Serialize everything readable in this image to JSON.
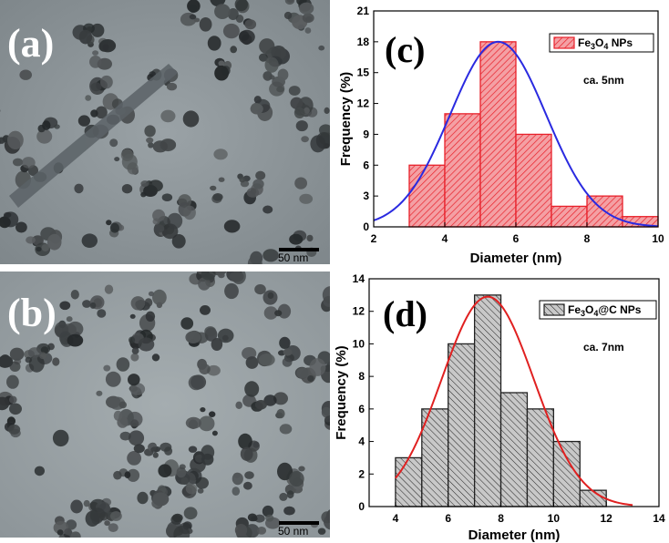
{
  "panels": {
    "a": {
      "letter": "(a)",
      "scale_label": "50 nm"
    },
    "b": {
      "letter": "(b)",
      "scale_label": "50 nm"
    },
    "c": {
      "letter": "(c)",
      "note": "ca. 5nm"
    },
    "d": {
      "letter": "(d)",
      "note": "ca. 7nm"
    }
  },
  "colors": {
    "c_bar_stroke": "#e8202a",
    "c_bar_fill": "#f4a0a4",
    "c_curve": "#2a2ae0",
    "d_bar_stroke": "#222222",
    "d_bar_fill": "#c8c8c8",
    "d_curve": "#e02020"
  },
  "chart_data": [
    {
      "id": "c",
      "type": "bar",
      "title": "",
      "xlabel": "Diameter (nm)",
      "ylabel": "Frequency (%)",
      "xlim": [
        2,
        10
      ],
      "ylim": [
        0,
        21
      ],
      "xticks": [
        2,
        4,
        6,
        8,
        10
      ],
      "yticks": [
        0,
        3,
        6,
        9,
        12,
        15,
        18,
        21
      ],
      "bin_width": 1,
      "bins": [
        {
          "x0": 3,
          "x1": 4,
          "value": 6
        },
        {
          "x0": 4,
          "x1": 5,
          "value": 11
        },
        {
          "x0": 5,
          "x1": 6,
          "value": 18
        },
        {
          "x0": 6,
          "x1": 7,
          "value": 9
        },
        {
          "x0": 7,
          "x1": 8,
          "value": 2
        },
        {
          "x0": 8,
          "x1": 9,
          "value": 3
        },
        {
          "x0": 9,
          "x1": 10,
          "value": 1
        }
      ],
      "fit": {
        "type": "gaussian",
        "mean": 5.5,
        "sigma": 1.35,
        "peak": 18,
        "x_range": [
          2,
          10
        ]
      },
      "legend": {
        "label_main": "Fe",
        "sub1": "3",
        "mid": "O",
        "sub2": "4",
        "tail": " NPs",
        "placement": "top-right"
      },
      "grid": false
    },
    {
      "id": "d",
      "type": "bar",
      "title": "",
      "xlabel": "Diameter (nm)",
      "ylabel": "Frequency (%)",
      "xlim": [
        3,
        14
      ],
      "ylim": [
        0,
        14
      ],
      "xticks": [
        4,
        6,
        8,
        10,
        12,
        14
      ],
      "yticks": [
        0,
        2,
        4,
        6,
        8,
        10,
        12,
        14
      ],
      "bin_width": 1,
      "bins": [
        {
          "x0": 4,
          "x1": 5,
          "value": 3
        },
        {
          "x0": 5,
          "x1": 6,
          "value": 6
        },
        {
          "x0": 6,
          "x1": 7,
          "value": 10
        },
        {
          "x0": 7,
          "x1": 8,
          "value": 13
        },
        {
          "x0": 8,
          "x1": 9,
          "value": 7
        },
        {
          "x0": 9,
          "x1": 10,
          "value": 6
        },
        {
          "x0": 10,
          "x1": 11,
          "value": 4
        },
        {
          "x0": 11,
          "x1": 12,
          "value": 1
        }
      ],
      "fit": {
        "type": "gaussian",
        "mean": 7.5,
        "sigma": 1.75,
        "peak": 12.9,
        "x_range": [
          4,
          13
        ]
      },
      "legend": {
        "label_main": "Fe",
        "sub1": "3",
        "mid": "O",
        "sub2": "4",
        "tail": "@C NPs",
        "placement": "top-right"
      },
      "grid": false
    }
  ]
}
